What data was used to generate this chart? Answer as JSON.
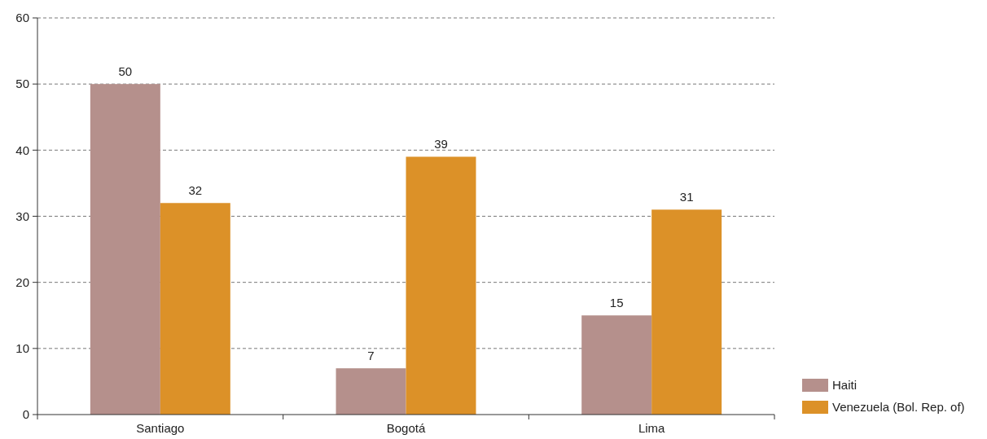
{
  "chart_data": {
    "type": "bar",
    "categories": [
      "Santiago",
      "Bogotá",
      "Lima"
    ],
    "series": [
      {
        "name": "Haiti",
        "color": "#b5908c",
        "values": [
          50,
          7,
          15
        ]
      },
      {
        "name": "Venezuela (Bol. Rep. of)",
        "color": "#dc9128",
        "values": [
          32,
          39,
          31
        ]
      }
    ],
    "ylim": [
      0,
      60
    ],
    "yticks": [
      0,
      10,
      20,
      30,
      40,
      50,
      60
    ],
    "grid": "y",
    "data_labels": true,
    "legend": "bottom right"
  }
}
